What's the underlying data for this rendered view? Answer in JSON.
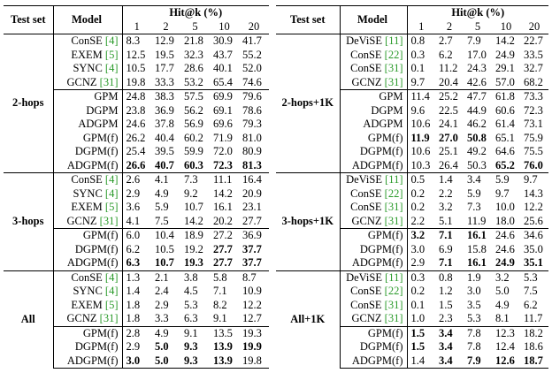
{
  "tables": [
    {
      "header": {
        "test_set": "Test set",
        "model": "Model",
        "metric": "Hit@k (%)",
        "k": [
          "1",
          "2",
          "5",
          "10",
          "20"
        ]
      },
      "groups": [
        {
          "name": "2-hops",
          "blocks": [
            [
              {
                "model": "ConSE",
                "ref": "[4]",
                "values": [
                  "8.3",
                  "12.9",
                  "21.8",
                  "30.9",
                  "41.7"
                ]
              },
              {
                "model": "EXEM",
                "ref": "[5]",
                "values": [
                  "12.5",
                  "19.5",
                  "32.3",
                  "43.7",
                  "55.2"
                ]
              },
              {
                "model": "SYNC",
                "ref": "[4]",
                "values": [
                  "10.5",
                  "17.7",
                  "28.6",
                  "40.1",
                  "52.0"
                ]
              },
              {
                "model": "GCNZ",
                "ref": "[31]",
                "values": [
                  "19.8",
                  "33.3",
                  "53.2",
                  "65.4",
                  "74.6"
                ]
              }
            ],
            [
              {
                "model": "GPM",
                "values": [
                  "24.8",
                  "38.3",
                  "57.5",
                  "69.9",
                  "79.6"
                ]
              },
              {
                "model": "DGPM",
                "values": [
                  "23.8",
                  "36.9",
                  "56.2",
                  "69.1",
                  "78.6"
                ]
              },
              {
                "model": "ADGPM",
                "values": [
                  "24.6",
                  "37.8",
                  "56.9",
                  "69.6",
                  "79.3"
                ]
              },
              {
                "model": "GPM(f)",
                "values": [
                  "26.2",
                  "40.4",
                  "60.2",
                  "71.9",
                  "81.0"
                ]
              },
              {
                "model": "DGPM(f)",
                "values": [
                  "25.4",
                  "39.5",
                  "59.9",
                  "72.0",
                  "80.9"
                ]
              },
              {
                "model": "ADGPM(f)",
                "values": [
                  "26.6",
                  "40.7",
                  "60.3",
                  "72.3",
                  "81.3"
                ],
                "bold": [
                  true,
                  true,
                  true,
                  true,
                  true
                ]
              }
            ]
          ]
        },
        {
          "name": "3-hops",
          "blocks": [
            [
              {
                "model": "ConSE",
                "ref": "[4]",
                "values": [
                  "2.6",
                  "4.1",
                  "7.3",
                  "11.1",
                  "16.4"
                ]
              },
              {
                "model": "SYNC",
                "ref": "[4]",
                "values": [
                  "2.9",
                  "4.9",
                  "9.2",
                  "14.2",
                  "20.9"
                ]
              },
              {
                "model": "EXEM",
                "ref": "[5]",
                "values": [
                  "3.6",
                  "5.9",
                  "10.7",
                  "16.1",
                  "23.1"
                ]
              },
              {
                "model": "GCNZ",
                "ref": "[31]",
                "values": [
                  "4.1",
                  "7.5",
                  "14.2",
                  "20.2",
                  "27.7"
                ]
              }
            ],
            [
              {
                "model": "GPM(f)",
                "values": [
                  "6.0",
                  "10.4",
                  "18.9",
                  "27.2",
                  "36.9"
                ]
              },
              {
                "model": "DGPM(f)",
                "values": [
                  "6.2",
                  "10.5",
                  "19.2",
                  "27.7",
                  "37.7"
                ],
                "bold": [
                  false,
                  false,
                  false,
                  true,
                  true
                ]
              },
              {
                "model": "ADGPM(f)",
                "values": [
                  "6.3",
                  "10.7",
                  "19.3",
                  "27.7",
                  "37.7"
                ],
                "bold": [
                  true,
                  true,
                  true,
                  true,
                  true
                ]
              }
            ]
          ]
        },
        {
          "name": "All",
          "blocks": [
            [
              {
                "model": "ConSE",
                "ref": "[4]",
                "values": [
                  "1.3",
                  "2.1",
                  "3.8",
                  "5.8",
                  "8.7"
                ]
              },
              {
                "model": "SYNC",
                "ref": "[4]",
                "values": [
                  "1.4",
                  "2.4",
                  "4.5",
                  "7.1",
                  "10.9"
                ]
              },
              {
                "model": "EXEM",
                "ref": "[5]",
                "values": [
                  "1.8",
                  "2.9",
                  "5.3",
                  "8.2",
                  "12.2"
                ]
              },
              {
                "model": "GCNZ",
                "ref": "[31]",
                "values": [
                  "1.8",
                  "3.3",
                  "6.3",
                  "9.1",
                  "12.7"
                ]
              }
            ],
            [
              {
                "model": "GPM(f)",
                "values": [
                  "2.8",
                  "4.9",
                  "9.1",
                  "13.5",
                  "19.3"
                ]
              },
              {
                "model": "DGPM(f)",
                "values": [
                  "2.9",
                  "5.0",
                  "9.3",
                  "13.9",
                  "19.9"
                ],
                "bold": [
                  false,
                  true,
                  true,
                  true,
                  true
                ]
              },
              {
                "model": "ADGPM(f)",
                "values": [
                  "3.0",
                  "5.0",
                  "9.3",
                  "13.9",
                  "19.8"
                ],
                "bold": [
                  true,
                  true,
                  true,
                  true,
                  false
                ]
              }
            ]
          ]
        }
      ]
    },
    {
      "header": {
        "test_set": "Test set",
        "model": "Model",
        "metric": "Hit@k (%)",
        "k": [
          "1",
          "2",
          "5",
          "10",
          "20"
        ]
      },
      "groups": [
        {
          "name": "2-hops+1K",
          "blocks": [
            [
              {
                "model": "DeViSE",
                "ref": "[11]",
                "values": [
                  "0.8",
                  "2.7",
                  "7.9",
                  "14.2",
                  "22.7"
                ]
              },
              {
                "model": "ConSE",
                "ref": "[22]",
                "values": [
                  "0.3",
                  "6.2",
                  "17.0",
                  "24.9",
                  "33.5"
                ]
              },
              {
                "model": "ConSE",
                "ref": "[31]",
                "values": [
                  "0.1",
                  "11.2",
                  "24.3",
                  "29.1",
                  "32.7"
                ]
              },
              {
                "model": "GCNZ",
                "ref": "[31]",
                "values": [
                  "9.7",
                  "20.4",
                  "42.6",
                  "57.0",
                  "68.2"
                ]
              }
            ],
            [
              {
                "model": "GPM",
                "values": [
                  "11.4",
                  "25.2",
                  "47.7",
                  "61.8",
                  "73.3"
                ]
              },
              {
                "model": "DGPM",
                "values": [
                  "9.6",
                  "22.5",
                  "44.9",
                  "60.6",
                  "72.3"
                ]
              },
              {
                "model": "ADGPM",
                "values": [
                  "10.6",
                  "24.1",
                  "46.2",
                  "61.4",
                  "73.1"
                ]
              },
              {
                "model": "GPM(f)",
                "values": [
                  "11.9",
                  "27.0",
                  "50.8",
                  "65.1",
                  "75.9"
                ],
                "bold": [
                  true,
                  true,
                  true,
                  false,
                  false
                ]
              },
              {
                "model": "DGPM(f)",
                "values": [
                  "10.6",
                  "25.1",
                  "49.2",
                  "64.6",
                  "75.5"
                ]
              },
              {
                "model": "ADGPM(f)",
                "values": [
                  "10.3",
                  "26.4",
                  "50.3",
                  "65.2",
                  "76.0"
                ],
                "bold": [
                  false,
                  false,
                  false,
                  true,
                  true
                ]
              }
            ]
          ]
        },
        {
          "name": "3-hops+1K",
          "blocks": [
            [
              {
                "model": "DeViSE",
                "ref": "[11]",
                "values": [
                  "0.5",
                  "1.4",
                  "3.4",
                  "5.9",
                  "9.7"
                ]
              },
              {
                "model": "ConSE",
                "ref": "[22]",
                "values": [
                  "0.2",
                  "2.2",
                  "5.9",
                  "9.7",
                  "14.3"
                ]
              },
              {
                "model": "ConSE",
                "ref": "[31]",
                "values": [
                  "0.2",
                  "3.2",
                  "7.3",
                  "10.0",
                  "12.2"
                ]
              },
              {
                "model": "GCNZ",
                "ref": "[31]",
                "values": [
                  "2.2",
                  "5.1",
                  "11.9",
                  "18.0",
                  "25.6"
                ]
              }
            ],
            [
              {
                "model": "GPM(f)",
                "values": [
                  "3.2",
                  "7.1",
                  "16.1",
                  "24.6",
                  "34.6"
                ],
                "bold": [
                  true,
                  true,
                  true,
                  false,
                  false
                ]
              },
              {
                "model": "DGPM(f)",
                "values": [
                  "3.0",
                  "6.9",
                  "15.8",
                  "24.6",
                  "35.0"
                ]
              },
              {
                "model": "ADGPM(f)",
                "values": [
                  "2.9",
                  "7.1",
                  "16.1",
                  "24.9",
                  "35.1"
                ],
                "bold": [
                  false,
                  true,
                  true,
                  true,
                  true
                ]
              }
            ]
          ]
        },
        {
          "name": "All+1K",
          "blocks": [
            [
              {
                "model": "DeViSE",
                "ref": "[11]",
                "values": [
                  "0.3",
                  "0.8",
                  "1.9",
                  "3.2",
                  "5.3"
                ]
              },
              {
                "model": "ConSE",
                "ref": "[22]",
                "values": [
                  "0.2",
                  "1.2",
                  "3.0",
                  "5.0",
                  "7.5"
                ]
              },
              {
                "model": "ConSE",
                "ref": "[31]",
                "values": [
                  "0.1",
                  "1.5",
                  "3.5",
                  "4.9",
                  "6.2"
                ]
              },
              {
                "model": "GCNZ",
                "ref": "[31]",
                "values": [
                  "1.0",
                  "2.3",
                  "5.3",
                  "8.1",
                  "11.7"
                ]
              }
            ],
            [
              {
                "model": "GPM(f)",
                "values": [
                  "1.5",
                  "3.4",
                  "7.8",
                  "12.3",
                  "18.2"
                ],
                "bold": [
                  true,
                  true,
                  false,
                  false,
                  false
                ]
              },
              {
                "model": "DGPM(f)",
                "values": [
                  "1.5",
                  "3.4",
                  "7.8",
                  "12.4",
                  "18.6"
                ],
                "bold": [
                  true,
                  true,
                  false,
                  false,
                  false
                ]
              },
              {
                "model": "ADGPM(f)",
                "values": [
                  "1.4",
                  "3.4",
                  "7.9",
                  "12.6",
                  "18.7"
                ],
                "bold": [
                  false,
                  true,
                  true,
                  true,
                  true
                ]
              }
            ]
          ]
        }
      ]
    }
  ]
}
